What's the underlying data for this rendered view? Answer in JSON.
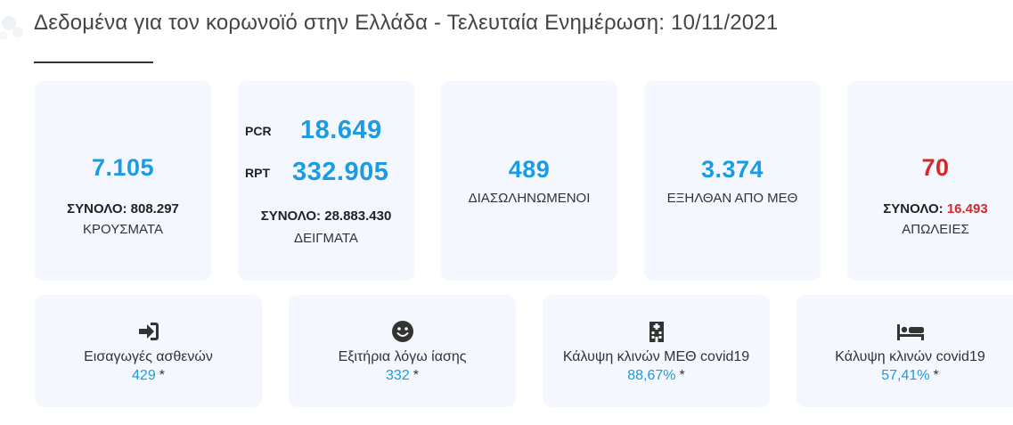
{
  "header": {
    "title": "Δεδομένα για τον κορωνοϊό στην Ελλάδα - Τελευταία Ενημέρωση: 10/11/2021"
  },
  "stats": {
    "cases": {
      "value": "7.105",
      "total_label": "ΣΥΝΟΛΟ:",
      "total_value": "808.297",
      "caption": "ΚΡΟΥΣΜΑΤΑ"
    },
    "tests": {
      "pcr_label": "PCR",
      "pcr_value": "18.649",
      "rpt_label": "RPT",
      "rpt_value": "332.905",
      "total_label": "ΣΥΝΟΛΟ:",
      "total_value": "28.883.430",
      "caption": "ΔΕΙΓΜΑΤΑ"
    },
    "intubated": {
      "value": "489",
      "caption": "ΔΙΑΣΩΛΗΝΩΜΕΝΟΙ"
    },
    "icu_discharged": {
      "value": "3.374",
      "caption": "ΕΞΗΛΘΑΝ ΑΠΟ ΜΕΘ"
    },
    "deaths": {
      "value": "70",
      "total_label": "ΣΥΝΟΛΟ:",
      "total_value": "16.493",
      "caption": "ΑΠΩΛΕΙΕΣ"
    }
  },
  "hospital": {
    "admissions": {
      "icon": "sign-in-icon",
      "label": "Εισαγωγές ασθενών",
      "value": "429",
      "note": "*"
    },
    "recoveries": {
      "icon": "smile-icon",
      "label": "Εξιτήρια λόγω ίασης",
      "value": "332",
      "note": "*"
    },
    "icu_beds": {
      "icon": "hospital-icon",
      "label": "Κάλυψη κλινών ΜΕΘ covid19",
      "value": "88,67%",
      "note": "*"
    },
    "covid_beds": {
      "icon": "bed-icon",
      "label": "Κάλυψη κλινών covid19",
      "value": "57,41%",
      "note": "*"
    }
  },
  "colors": {
    "accent": "#1a9be3",
    "alert": "#d12a2a",
    "card_bg": "#f4f7fd"
  }
}
